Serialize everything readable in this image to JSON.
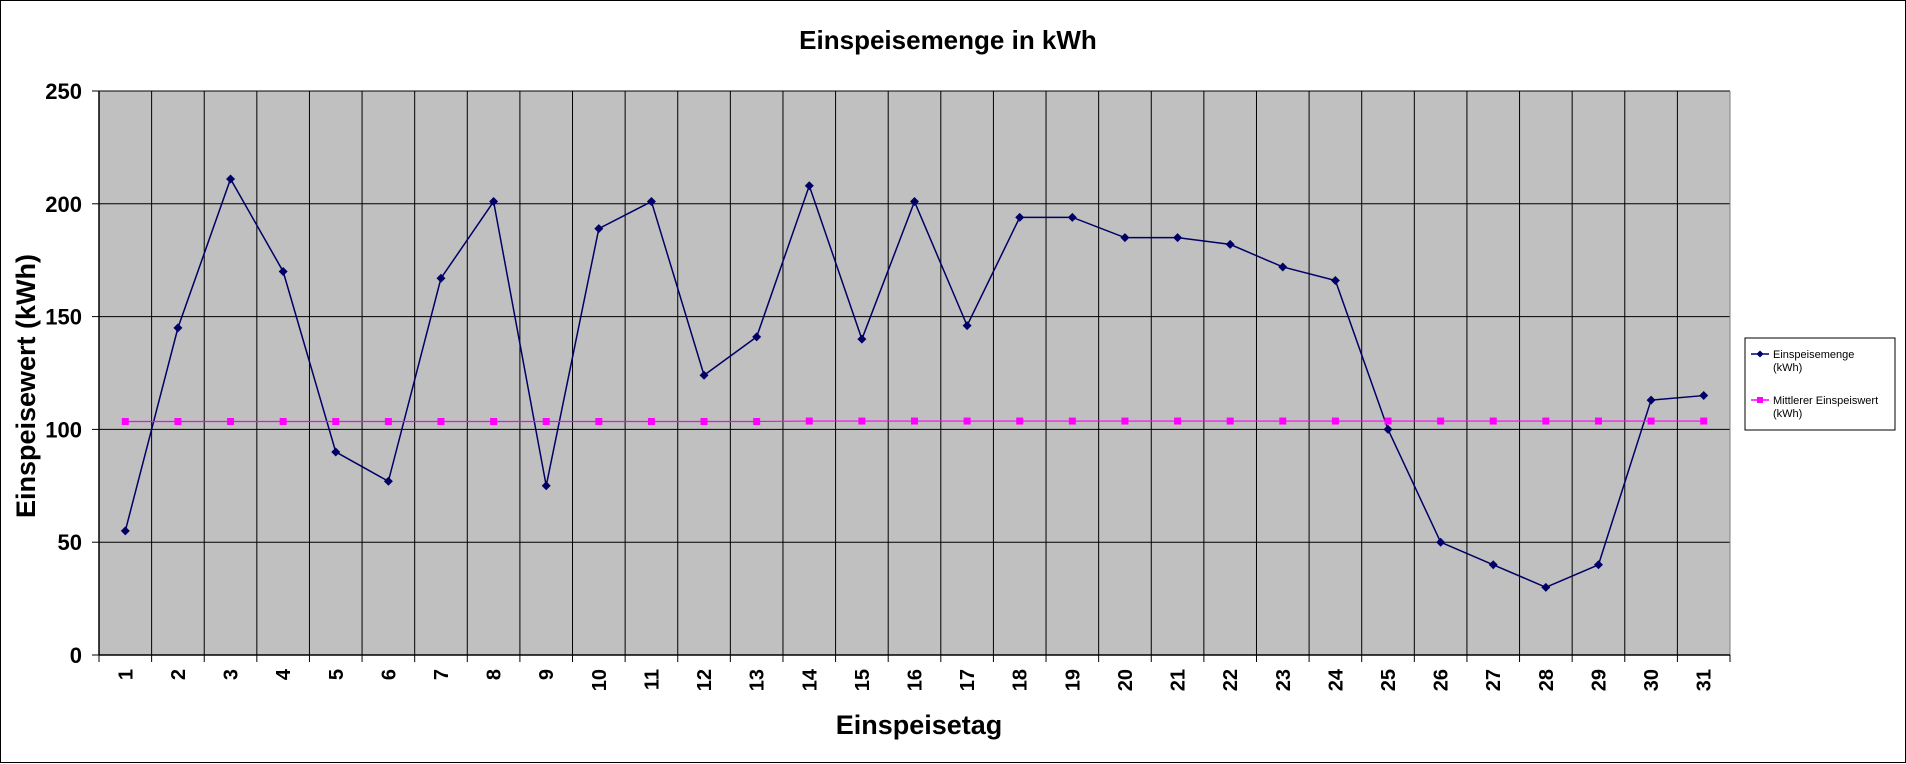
{
  "chart_data": {
    "type": "line",
    "title": "Einspeisemenge in kWh",
    "xlabel": "Einspeisetag",
    "ylabel": "Einspeisewert  (kWh)",
    "ylim": [
      0,
      250
    ],
    "yticks": [
      0,
      50,
      100,
      150,
      200,
      250
    ],
    "grid": true,
    "legend_position": "right",
    "categories": [
      "1",
      "2",
      "3",
      "4",
      "5",
      "6",
      "7",
      "8",
      "9",
      "10",
      "11",
      "12",
      "13",
      "14",
      "15",
      "16",
      "17",
      "18",
      "19",
      "20",
      "21",
      "22",
      "23",
      "24",
      "25",
      "26",
      "27",
      "28",
      "29",
      "30",
      "31"
    ],
    "series": [
      {
        "name": "Einspeisemenge (kWh)",
        "legend_lines": [
          "Einspeisemenge",
          "(kWh)"
        ],
        "color": "#000066",
        "marker": "diamond",
        "values": [
          55,
          145,
          211,
          170,
          90,
          77,
          167,
          201,
          75,
          189,
          201,
          124,
          141,
          208,
          140,
          201,
          146,
          194,
          194,
          185,
          185,
          182,
          172,
          166,
          100,
          50,
          40,
          30,
          40,
          113,
          115
        ]
      },
      {
        "name": "Mittlerer Einspeiswert (kWh)",
        "legend_lines": [
          "Mittlerer Einspeiswert",
          "(kWh)"
        ],
        "color": "#ff00ff",
        "marker": "square",
        "values": [
          103.5,
          103.5,
          103.5,
          103.5,
          103.5,
          103.5,
          103.5,
          103.5,
          103.5,
          103.5,
          103.5,
          103.5,
          103.5,
          103.7,
          103.7,
          103.7,
          103.7,
          103.7,
          103.7,
          103.7,
          103.7,
          103.7,
          103.7,
          103.7,
          103.7,
          103.7,
          103.7,
          103.7,
          103.7,
          103.7,
          103.7
        ]
      }
    ],
    "colors": {
      "plot_background": "#c0c0c0",
      "gridline": "#000000"
    }
  }
}
